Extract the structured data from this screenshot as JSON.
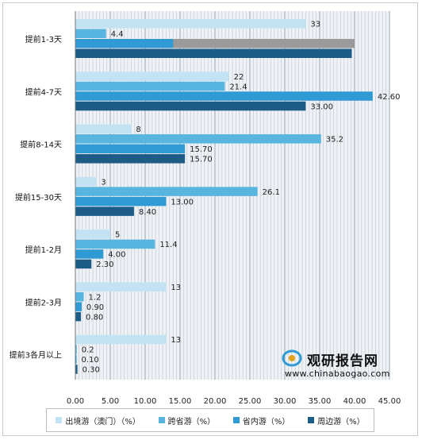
{
  "chart_data": {
    "type": "bar",
    "orientation": "horizontal",
    "categories": [
      "提前1-3天",
      "提前4-7天",
      "提前8-14天",
      "提前15-30天",
      "提前1-2月",
      "提前2-3月",
      "提前3各月以上"
    ],
    "series": [
      {
        "name": "出境游（澳门）（%）",
        "color": "#c3e3f4",
        "values": [
          33,
          22,
          8,
          3,
          5,
          13,
          13
        ],
        "labels": [
          "33",
          "22",
          "8",
          "3",
          "5",
          "13",
          "13"
        ]
      },
      {
        "name": "跨省游（%）",
        "color": "#58b5e0",
        "values": [
          4.4,
          21.4,
          35.2,
          26.1,
          11.4,
          1.2,
          0.2
        ],
        "labels": [
          "4.4",
          "21.4",
          "35.2",
          "26.1",
          "11.4",
          "1.2",
          "0.2"
        ]
      },
      {
        "name": "省内游（%）",
        "color": "#2f9ad4",
        "values": [
          14.0,
          42.6,
          15.7,
          13.0,
          4.0,
          0.9,
          0.1
        ],
        "labels": [
          "",
          "42.60",
          "15.70",
          "13.00",
          "4.00",
          "0.90",
          "0.10"
        ]
      },
      {
        "name": "周边游（%）",
        "color": "#1c5c86",
        "values": [
          39.6,
          33.0,
          15.7,
          8.4,
          2.3,
          0.8,
          0.3
        ],
        "labels": [
          "",
          "33.00",
          "15.70",
          "8.40",
          "2.30",
          "0.80",
          "0.30"
        ]
      }
    ],
    "xlim": [
      0,
      45
    ],
    "xticks": [
      "0.00",
      "5.00",
      "10.00",
      "15.00",
      "20.00",
      "25.00",
      "30.00",
      "35.00",
      "40.00",
      "45.00"
    ],
    "legend_position": "bottom",
    "grid": true
  },
  "watermark": {
    "name": "观研报告网",
    "url": "www.chinabaogao.com"
  }
}
